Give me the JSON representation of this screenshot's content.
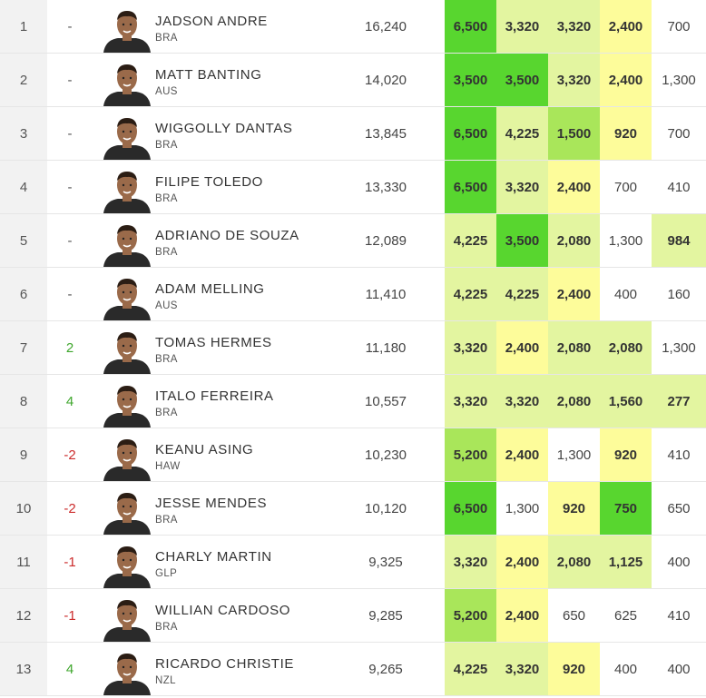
{
  "colors": {
    "bright_green": "#58d62f",
    "mid_green": "#a9e65a",
    "light_green": "#e3f5a0",
    "pale_yellow": "#f5f9a8",
    "yellow": "#fdfc9a",
    "white": "#ffffff"
  },
  "rows": [
    {
      "rank": "1",
      "change": "-",
      "dir": "none",
      "name": "JADSON ANDRE",
      "country": "BRA",
      "total": "16,240",
      "heats": [
        {
          "v": "6,500",
          "c": "bright_green",
          "b": true
        },
        {
          "v": "3,320",
          "c": "light_green",
          "b": true
        },
        {
          "v": "3,320",
          "c": "light_green",
          "b": true
        },
        {
          "v": "2,400",
          "c": "yellow",
          "b": true
        },
        {
          "v": "700",
          "c": "white",
          "b": false
        }
      ]
    },
    {
      "rank": "2",
      "change": "-",
      "dir": "none",
      "name": "MATT BANTING",
      "country": "AUS",
      "total": "14,020",
      "heats": [
        {
          "v": "3,500",
          "c": "bright_green",
          "b": true
        },
        {
          "v": "3,500",
          "c": "bright_green",
          "b": true
        },
        {
          "v": "3,320",
          "c": "light_green",
          "b": true
        },
        {
          "v": "2,400",
          "c": "yellow",
          "b": true
        },
        {
          "v": "1,300",
          "c": "white",
          "b": false
        }
      ]
    },
    {
      "rank": "3",
      "change": "-",
      "dir": "none",
      "name": "WIGGOLLY DANTAS",
      "country": "BRA",
      "total": "13,845",
      "heats": [
        {
          "v": "6,500",
          "c": "bright_green",
          "b": true
        },
        {
          "v": "4,225",
          "c": "light_green",
          "b": true
        },
        {
          "v": "1,500",
          "c": "mid_green",
          "b": true
        },
        {
          "v": "920",
          "c": "yellow",
          "b": true
        },
        {
          "v": "700",
          "c": "white",
          "b": false
        }
      ]
    },
    {
      "rank": "4",
      "change": "-",
      "dir": "none",
      "name": "FILIPE TOLEDO",
      "country": "BRA",
      "total": "13,330",
      "heats": [
        {
          "v": "6,500",
          "c": "bright_green",
          "b": true
        },
        {
          "v": "3,320",
          "c": "light_green",
          "b": true
        },
        {
          "v": "2,400",
          "c": "yellow",
          "b": true
        },
        {
          "v": "700",
          "c": "white",
          "b": false
        },
        {
          "v": "410",
          "c": "white",
          "b": false
        }
      ]
    },
    {
      "rank": "5",
      "change": "-",
      "dir": "none",
      "name": "ADRIANO DE SOUZA",
      "country": "BRA",
      "total": "12,089",
      "heats": [
        {
          "v": "4,225",
          "c": "light_green",
          "b": true
        },
        {
          "v": "3,500",
          "c": "bright_green",
          "b": true
        },
        {
          "v": "2,080",
          "c": "light_green",
          "b": true
        },
        {
          "v": "1,300",
          "c": "white",
          "b": false
        },
        {
          "v": "984",
          "c": "light_green",
          "b": true
        }
      ]
    },
    {
      "rank": "6",
      "change": "-",
      "dir": "none",
      "name": "ADAM MELLING",
      "country": "AUS",
      "total": "11,410",
      "heats": [
        {
          "v": "4,225",
          "c": "light_green",
          "b": true
        },
        {
          "v": "4,225",
          "c": "light_green",
          "b": true
        },
        {
          "v": "2,400",
          "c": "yellow",
          "b": true
        },
        {
          "v": "400",
          "c": "white",
          "b": false
        },
        {
          "v": "160",
          "c": "white",
          "b": false
        }
      ]
    },
    {
      "rank": "7",
      "change": "2",
      "dir": "up",
      "name": "TOMAS HERMES",
      "country": "BRA",
      "total": "11,180",
      "heats": [
        {
          "v": "3,320",
          "c": "light_green",
          "b": true
        },
        {
          "v": "2,400",
          "c": "yellow",
          "b": true
        },
        {
          "v": "2,080",
          "c": "light_green",
          "b": true
        },
        {
          "v": "2,080",
          "c": "light_green",
          "b": true
        },
        {
          "v": "1,300",
          "c": "white",
          "b": false
        }
      ]
    },
    {
      "rank": "8",
      "change": "4",
      "dir": "up",
      "name": "ITALO FERREIRA",
      "country": "BRA",
      "total": "10,557",
      "heats": [
        {
          "v": "3,320",
          "c": "light_green",
          "b": true
        },
        {
          "v": "3,320",
          "c": "light_green",
          "b": true
        },
        {
          "v": "2,080",
          "c": "light_green",
          "b": true
        },
        {
          "v": "1,560",
          "c": "light_green",
          "b": true
        },
        {
          "v": "277",
          "c": "light_green",
          "b": true
        }
      ]
    },
    {
      "rank": "9",
      "change": "-2",
      "dir": "down",
      "name": "KEANU ASING",
      "country": "HAW",
      "total": "10,230",
      "heats": [
        {
          "v": "5,200",
          "c": "mid_green",
          "b": true
        },
        {
          "v": "2,400",
          "c": "yellow",
          "b": true
        },
        {
          "v": "1,300",
          "c": "white",
          "b": false
        },
        {
          "v": "920",
          "c": "yellow",
          "b": true
        },
        {
          "v": "410",
          "c": "white",
          "b": false
        }
      ]
    },
    {
      "rank": "10",
      "change": "-2",
      "dir": "down",
      "name": "JESSE MENDES",
      "country": "BRA",
      "total": "10,120",
      "heats": [
        {
          "v": "6,500",
          "c": "bright_green",
          "b": true
        },
        {
          "v": "1,300",
          "c": "white",
          "b": false
        },
        {
          "v": "920",
          "c": "yellow",
          "b": true
        },
        {
          "v": "750",
          "c": "bright_green",
          "b": true
        },
        {
          "v": "650",
          "c": "white",
          "b": false
        }
      ]
    },
    {
      "rank": "11",
      "change": "-1",
      "dir": "down",
      "name": "CHARLY MARTIN",
      "country": "GLP",
      "total": "9,325",
      "heats": [
        {
          "v": "3,320",
          "c": "light_green",
          "b": true
        },
        {
          "v": "2,400",
          "c": "yellow",
          "b": true
        },
        {
          "v": "2,080",
          "c": "light_green",
          "b": true
        },
        {
          "v": "1,125",
          "c": "light_green",
          "b": true
        },
        {
          "v": "400",
          "c": "white",
          "b": false
        }
      ]
    },
    {
      "rank": "12",
      "change": "-1",
      "dir": "down",
      "name": "WILLIAN CARDOSO",
      "country": "BRA",
      "total": "9,285",
      "heats": [
        {
          "v": "5,200",
          "c": "mid_green",
          "b": true
        },
        {
          "v": "2,400",
          "c": "yellow",
          "b": true
        },
        {
          "v": "650",
          "c": "white",
          "b": false
        },
        {
          "v": "625",
          "c": "white",
          "b": false
        },
        {
          "v": "410",
          "c": "white",
          "b": false
        }
      ]
    },
    {
      "rank": "13",
      "change": "4",
      "dir": "up",
      "name": "RICARDO CHRISTIE",
      "country": "NZL",
      "total": "9,265",
      "heats": [
        {
          "v": "4,225",
          "c": "light_green",
          "b": true
        },
        {
          "v": "3,320",
          "c": "light_green",
          "b": true
        },
        {
          "v": "920",
          "c": "yellow",
          "b": true
        },
        {
          "v": "400",
          "c": "white",
          "b": false
        },
        {
          "v": "400",
          "c": "white",
          "b": false
        }
      ]
    }
  ]
}
